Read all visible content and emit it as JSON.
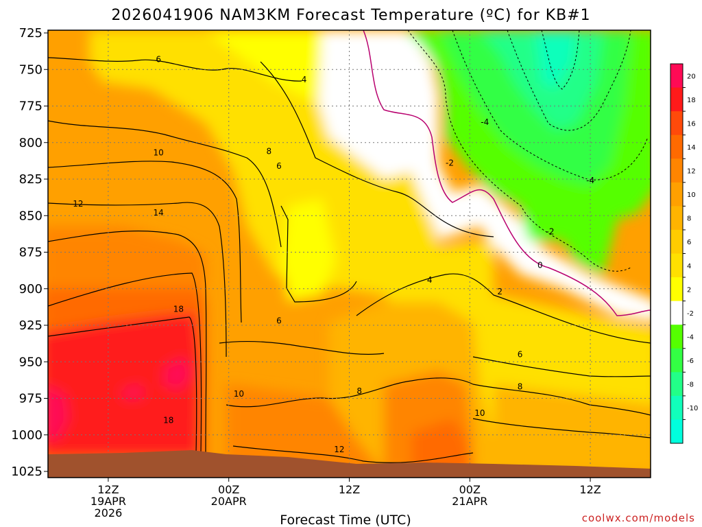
{
  "chart_data": {
    "type": "heatmap",
    "title": "2026041906 NAM3KM Forecast Temperature (ºC) for KB#1",
    "xlabel": "Forecast Time (UTC)",
    "ylabel": "",
    "y_ticks": [
      "725",
      "750",
      "775",
      "800",
      "825",
      "850",
      "875",
      "900",
      "925",
      "950",
      "975",
      "1000",
      "1025"
    ],
    "ylim": [
      725,
      1025
    ],
    "x_ticks": [
      {
        "hour": 6,
        "lines": [
          "12Z",
          "19APR",
          "2026"
        ]
      },
      {
        "hour": 18,
        "lines": [
          "00Z",
          "20APR"
        ]
      },
      {
        "hour": 30,
        "lines": [
          "12Z"
        ]
      },
      {
        "hour": 42,
        "lines": [
          "00Z",
          "21APR"
        ]
      },
      {
        "hour": 54,
        "lines": [
          "12Z"
        ]
      }
    ],
    "xlim": [
      0,
      60
    ],
    "grid": true,
    "colorbar": {
      "levels": [
        {
          "label": "20",
          "color": "#ff0a55"
        },
        {
          "label": "18",
          "color": "#ff1a1a"
        },
        {
          "label": "16",
          "color": "#ff4a0a"
        },
        {
          "label": "14",
          "color": "#ff6a00"
        },
        {
          "label": "12",
          "color": "#ff8500"
        },
        {
          "label": "10",
          "color": "#ffa000"
        },
        {
          "label": "8",
          "color": "#ffb400"
        },
        {
          "label": "6",
          "color": "#ffcc00"
        },
        {
          "label": "4",
          "color": "#ffe000"
        },
        {
          "label": "2",
          "color": "#ffff00"
        },
        {
          "label": "-2",
          "color": "#ffffff"
        },
        {
          "label": "-4",
          "color": "#55ff00"
        },
        {
          "label": "-6",
          "color": "#33ff44"
        },
        {
          "label": "-8",
          "color": "#22ff88"
        },
        {
          "label": "-10",
          "color": "#11ffbb"
        }
      ],
      "bottom_color": "#00ffdd"
    },
    "ground_color": "#a0522d",
    "contour_labels": [
      {
        "text": "6",
        "hour": 11.0,
        "p": 743
      },
      {
        "text": "4",
        "hour": 25.5,
        "p": 757
      },
      {
        "text": "-4",
        "hour": 43.5,
        "p": 786
      },
      {
        "text": "10",
        "hour": 11.0,
        "p": 807
      },
      {
        "text": "8",
        "hour": 22.0,
        "p": 806
      },
      {
        "text": "6",
        "hour": 23.0,
        "p": 816
      },
      {
        "text": "-2",
        "hour": 40.0,
        "p": 814
      },
      {
        "text": "-4",
        "hour": 54.0,
        "p": 826
      },
      {
        "text": "12",
        "hour": 3.0,
        "p": 842
      },
      {
        "text": "14",
        "hour": 11.0,
        "p": 848
      },
      {
        "text": "-2",
        "hour": 50.0,
        "p": 861
      },
      {
        "text": "0",
        "hour": 49.0,
        "p": 884
      },
      {
        "text": "4",
        "hour": 38.0,
        "p": 894
      },
      {
        "text": "2",
        "hour": 45.0,
        "p": 902
      },
      {
        "text": "18",
        "hour": 13.0,
        "p": 914
      },
      {
        "text": "6",
        "hour": 23.0,
        "p": 922
      },
      {
        "text": "6",
        "hour": 47.0,
        "p": 945
      },
      {
        "text": "10",
        "hour": 19.0,
        "p": 972
      },
      {
        "text": "8",
        "hour": 31.0,
        "p": 970
      },
      {
        "text": "8",
        "hour": 47.0,
        "p": 967
      },
      {
        "text": "18",
        "hour": 12.0,
        "p": 990
      },
      {
        "text": "10",
        "hour": 43.0,
        "p": 985
      },
      {
        "text": "12",
        "hour": 29.0,
        "p": 1010
      }
    ]
  },
  "credit": "coolwx.com/models"
}
